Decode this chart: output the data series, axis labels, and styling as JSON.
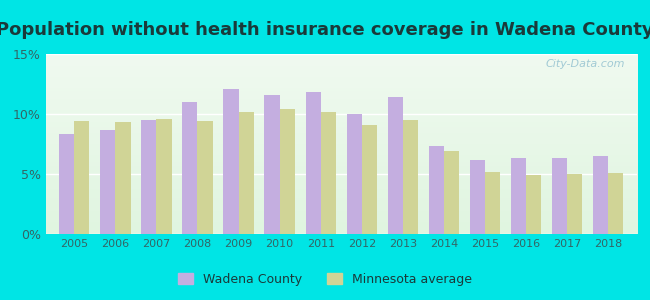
{
  "title": "Population without health insurance coverage in Wadena County",
  "years": [
    2005,
    2006,
    2007,
    2008,
    2009,
    2010,
    2011,
    2012,
    2013,
    2014,
    2015,
    2016,
    2017,
    2018
  ],
  "wadena": [
    8.3,
    8.7,
    9.5,
    11.0,
    12.1,
    11.6,
    11.8,
    10.0,
    11.4,
    7.3,
    6.2,
    6.3,
    6.3,
    6.5
  ],
  "minnesota": [
    9.4,
    9.3,
    9.6,
    9.4,
    10.2,
    10.4,
    10.2,
    9.1,
    9.5,
    6.9,
    5.2,
    4.9,
    5.0,
    5.1
  ],
  "wadena_color": "#c4aee0",
  "minnesota_color": "#d0d496",
  "background_outer": "#00e5e5",
  "background_inner_top": "#f0faf0",
  "background_inner_bottom": "#e0f5e0",
  "ylim": [
    0,
    15
  ],
  "yticks": [
    0,
    5,
    10,
    15
  ],
  "ytick_labels": [
    "0%",
    "5%",
    "10%",
    "15%"
  ],
  "bar_width": 0.37,
  "legend_wadena": "Wadena County",
  "legend_minnesota": "Minnesota average",
  "title_fontsize": 13,
  "title_color": "#1a3a3a",
  "watermark": "City-Data.com",
  "tick_color": "#336666",
  "tick_fontsize": 8
}
